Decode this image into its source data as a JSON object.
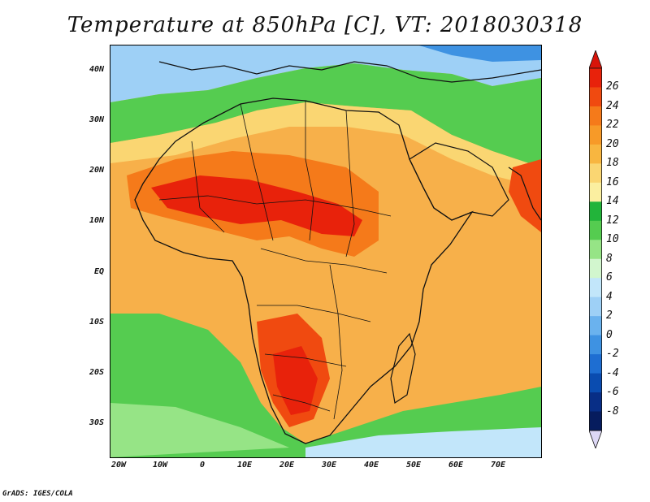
{
  "title": "Temperature at 850hPa [C], VT: 2018030318",
  "credit": "GrADS: IGES/COLA",
  "lat_labels": [
    "40N",
    "30N",
    "20N",
    "10N",
    "EQ",
    "10S",
    "20S",
    "30S"
  ],
  "lat_values": [
    40,
    30,
    20,
    10,
    0,
    -10,
    -20,
    -30
  ],
  "lon_labels": [
    "20W",
    "10W",
    "0",
    "10E",
    "20E",
    "30E",
    "40E",
    "50E",
    "60E",
    "70E"
  ],
  "lon_values": [
    -20,
    -10,
    0,
    10,
    20,
    30,
    40,
    50,
    60,
    70
  ],
  "extent": {
    "lon_min": -22,
    "lon_max": 80,
    "lat_min": -36,
    "lat_max": 45
  },
  "colorbar": {
    "labels": [
      "26",
      "24",
      "22",
      "20",
      "18",
      "16",
      "14",
      "12",
      "10",
      "8",
      "6",
      "4",
      "2",
      "0",
      "-2",
      "-4",
      "-6",
      "-8"
    ],
    "colors": [
      "#e8220b",
      "#f04a10",
      "#f57a1a",
      "#f79a28",
      "#f8b640",
      "#fad672",
      "#fbefa0",
      "#22b43a",
      "#55cc50",
      "#96e486",
      "#d2f6ce",
      "#c2e6fa",
      "#9ed0f6",
      "#6ab2ee",
      "#3e92e2",
      "#1e6ed2",
      "#0a4cb0",
      "#082e86",
      "#061c5e"
    ],
    "low_arrow_color": "#ddd8f5",
    "high_arrow_color": "#d8140a"
  }
}
